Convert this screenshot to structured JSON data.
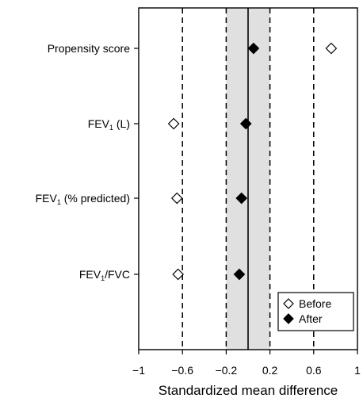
{
  "chart_data": {
    "type": "scatter",
    "title": "",
    "xlabel": "Standardized mean difference",
    "ylabel": "",
    "xlim": [
      -1,
      1
    ],
    "x_ticks": [
      -1,
      -0.6,
      -0.2,
      0.2,
      0.6,
      1
    ],
    "x_tick_labels": [
      "−1",
      "−0.6",
      "−0.2",
      "0.2",
      "0.6",
      "1"
    ],
    "reference_lines": [
      -0.6,
      0.6
    ],
    "zero_line": 0,
    "shaded_band": [
      -0.2,
      0.2
    ],
    "grid": false,
    "legend_position": "bottom-right",
    "categories": [
      {
        "main": "Propensity score",
        "sub": "",
        "rest": ""
      },
      {
        "main": "FEV",
        "sub": "1",
        "rest": " (L)"
      },
      {
        "main": "FEV",
        "sub": "1",
        "rest": " (% predicted)"
      },
      {
        "main": "FEV",
        "sub": "1",
        "rest": "/FVC"
      }
    ],
    "series": [
      {
        "name": "Before",
        "marker": "open-diamond",
        "values": [
          0.76,
          -0.68,
          -0.65,
          -0.64
        ]
      },
      {
        "name": "After",
        "marker": "filled-diamond",
        "values": [
          0.05,
          -0.02,
          -0.06,
          -0.08
        ]
      }
    ],
    "colors": {
      "band": "#e0e0e0",
      "marker": "#000000",
      "axis": "#000000"
    }
  }
}
